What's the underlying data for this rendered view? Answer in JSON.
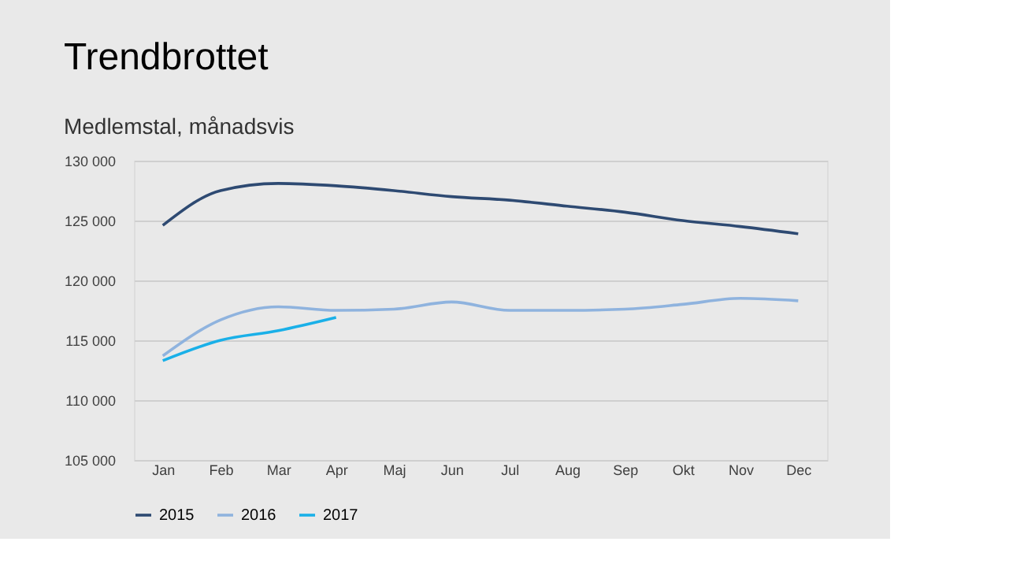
{
  "chart_data": {
    "type": "line",
    "title": "Trendbrottet",
    "subtitle": "Medlemstal, månadsvis",
    "categories": [
      "Jan",
      "Feb",
      "Mar",
      "Apr",
      "Maj",
      "Jun",
      "Jul",
      "Aug",
      "Sep",
      "Okt",
      "Nov",
      "Dec"
    ],
    "series": [
      {
        "name": "2015",
        "color": "#2e4a72",
        "values": [
          124600,
          127500,
          128100,
          127900,
          127500,
          127000,
          126700,
          126200,
          125700,
          125000,
          124500,
          123900
        ]
      },
      {
        "name": "2016",
        "color": "#8fb3de",
        "values": [
          113700,
          116700,
          117800,
          117500,
          117600,
          118200,
          117500,
          117500,
          117600,
          118000,
          118500,
          118300
        ]
      },
      {
        "name": "2017",
        "color": "#1ab0e8",
        "values": [
          113300,
          115000,
          115800,
          116900,
          null,
          null,
          null,
          null,
          null,
          null,
          null,
          null
        ]
      }
    ],
    "ylim": [
      105000,
      130000
    ],
    "yticks": [
      105000,
      110000,
      115000,
      120000,
      125000,
      130000
    ],
    "grid": "y",
    "legend": "bottom",
    "marker": "none",
    "line_style": "solid"
  }
}
